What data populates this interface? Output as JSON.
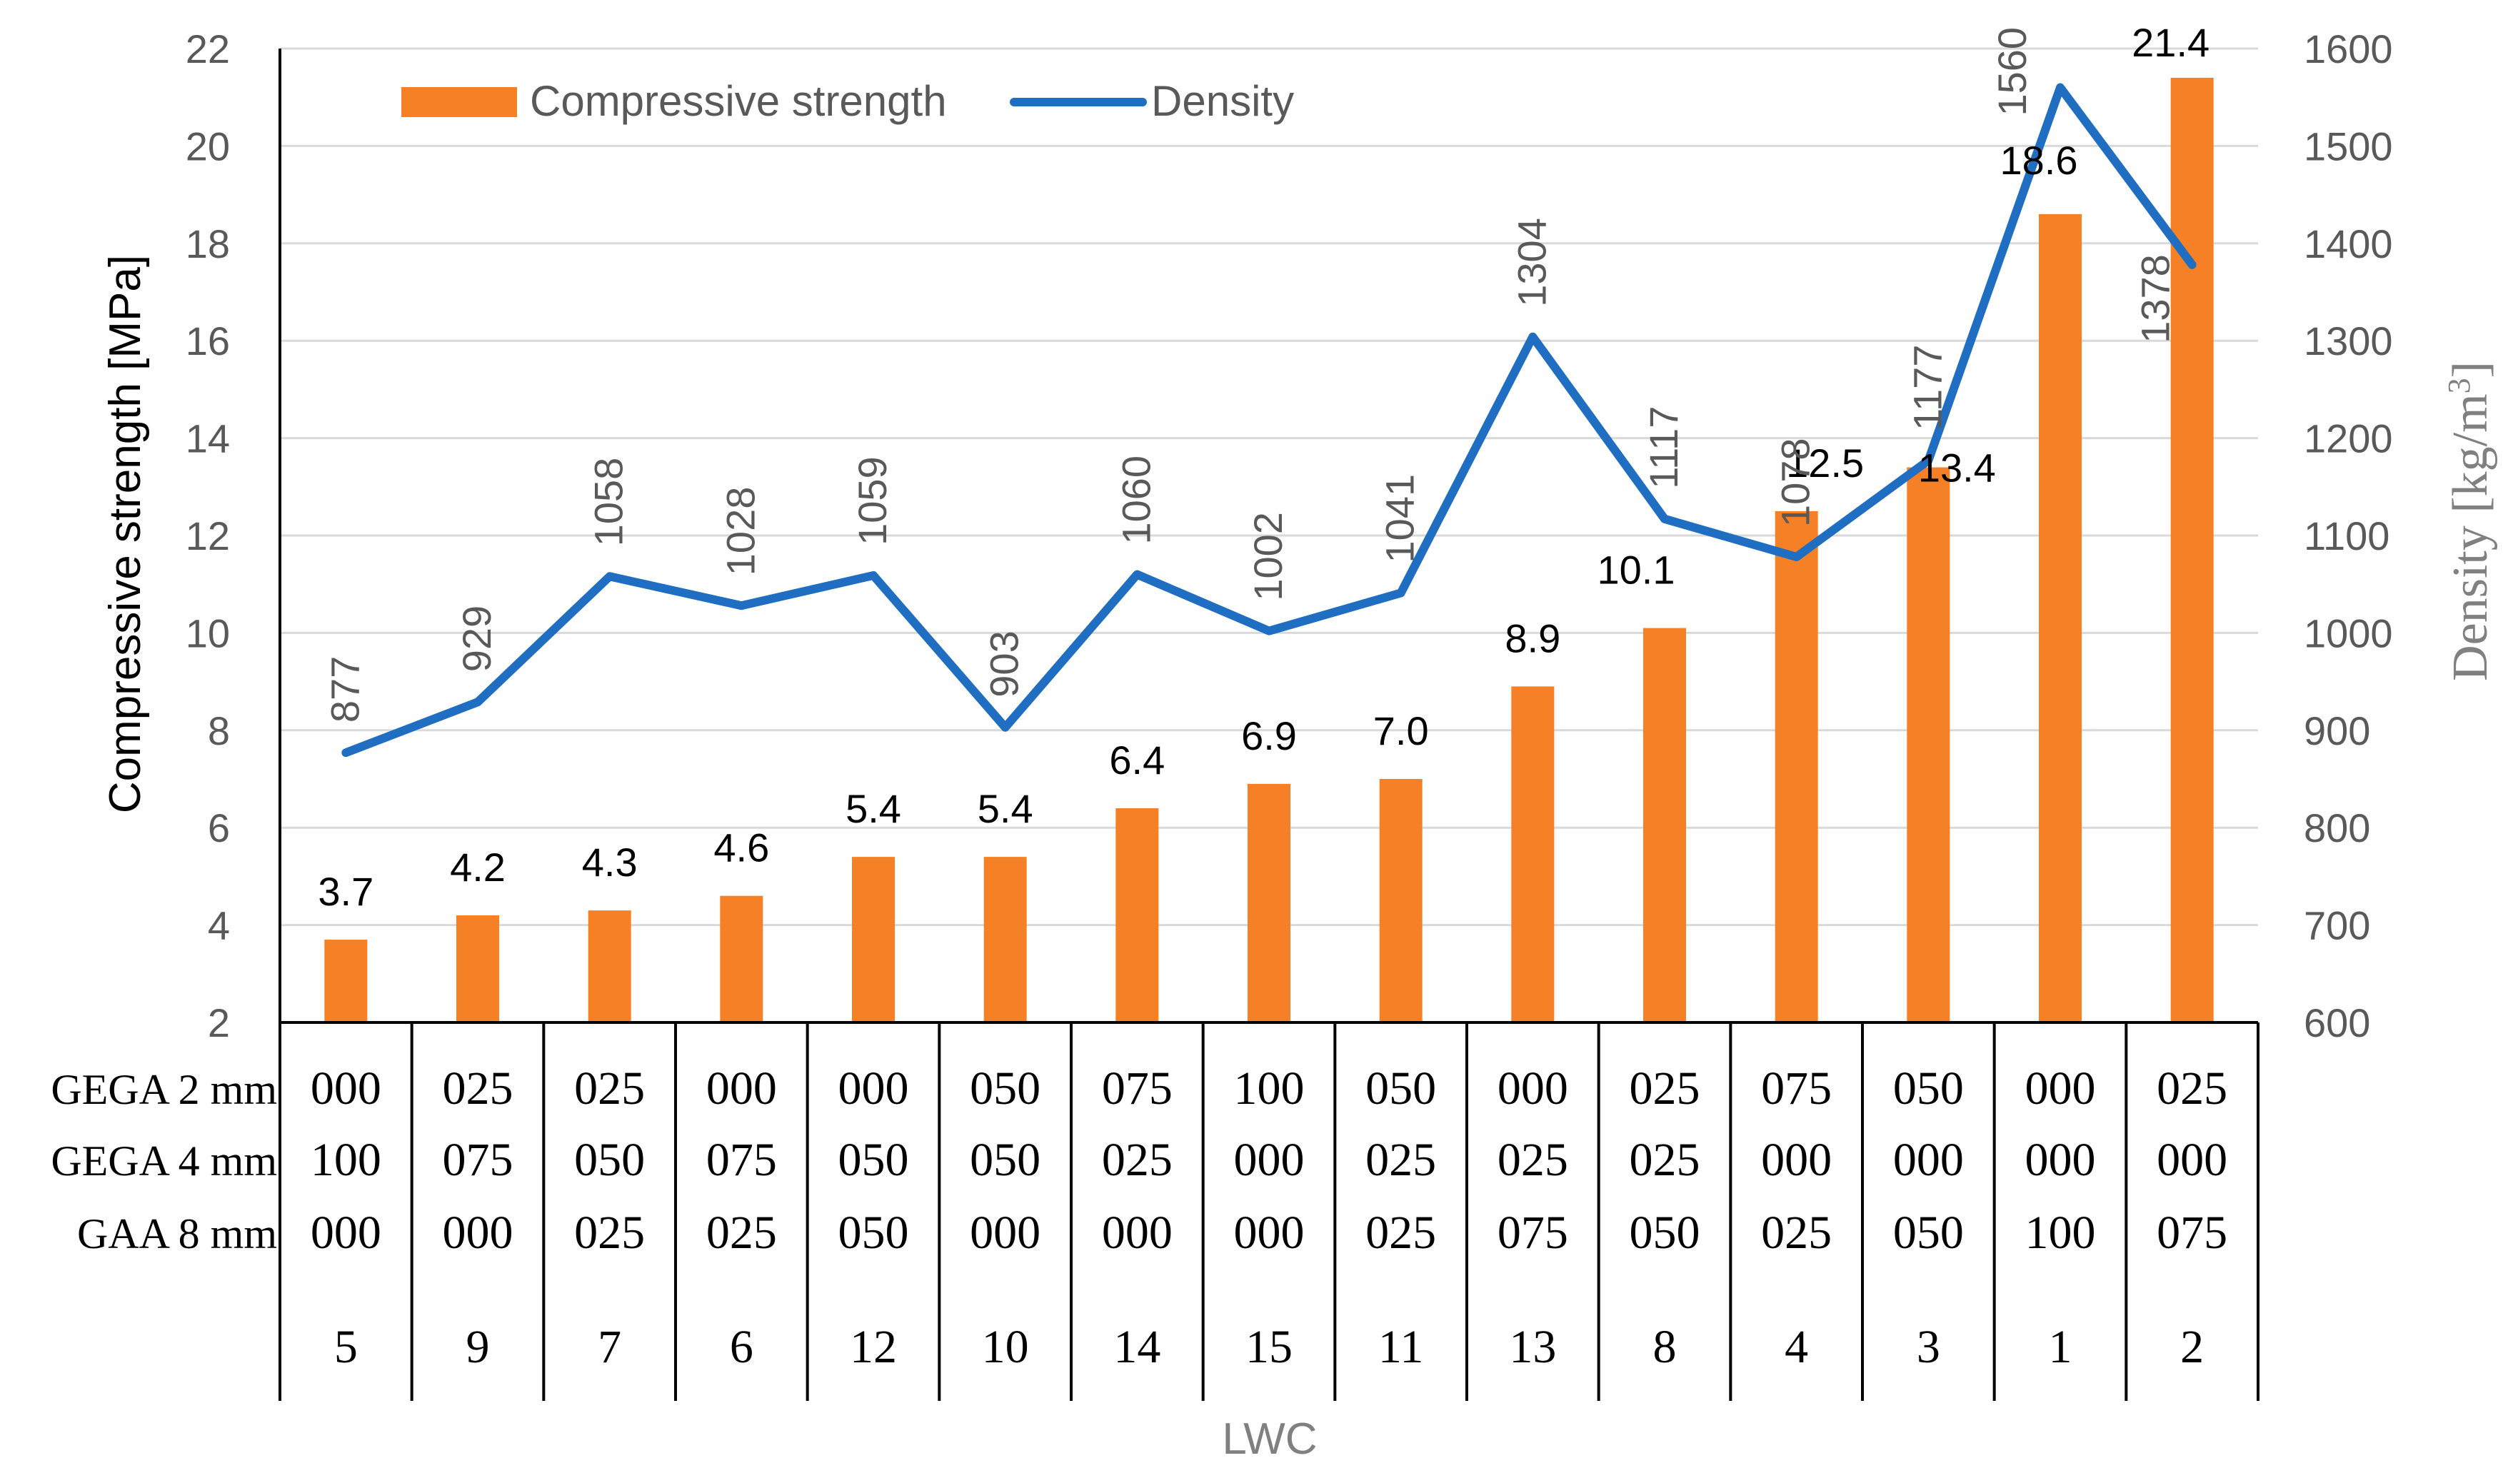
{
  "chart_data": {
    "type": "bar+line",
    "categories": [
      "5",
      "9",
      "7",
      "6",
      "12",
      "10",
      "14",
      "15",
      "11",
      "13",
      "8",
      "4",
      "3",
      "1",
      "2"
    ],
    "series": [
      {
        "name": "Compressive strength",
        "type": "bar",
        "axis": "left",
        "color": "#F58025",
        "values": [
          3.7,
          4.2,
          4.3,
          4.6,
          5.4,
          5.4,
          6.4,
          6.9,
          7.0,
          8.9,
          10.1,
          12.5,
          13.4,
          18.6,
          21.4
        ],
        "labels": [
          "3.7",
          "4.2",
          "4.3",
          "4.6",
          "5.4",
          "5.4",
          "6.4",
          "6.9",
          "7.0",
          "8.9",
          "10.1",
          "12.5",
          "13.4",
          "18.6",
          "21.4"
        ]
      },
      {
        "name": "Density",
        "type": "line",
        "axis": "right",
        "color": "#1F6EC2",
        "values": [
          877,
          929,
          1058,
          1028,
          1059,
          903,
          1060,
          1002,
          1041,
          1304,
          1117,
          1078,
          1177,
          1560,
          1378
        ],
        "labels": [
          "877",
          "929",
          "1058",
          "1028",
          "1059",
          "903",
          "1060",
          "1002",
          "1041",
          "1304",
          "1117",
          "1078",
          "1177",
          "1560",
          "1378"
        ]
      }
    ],
    "ylabel": "Compressive strength [MPa]",
    "y2label_main": "Density [kg/m",
    "y2label_sup": "3",
    "y2label_close": "]",
    "xlabel": "LWC",
    "ylim": [
      2,
      22
    ],
    "y2lim": [
      600,
      1600
    ],
    "yticks": [
      "2",
      "4",
      "6",
      "8",
      "10",
      "12",
      "14",
      "16",
      "18",
      "20",
      "22"
    ],
    "y2ticks": [
      "600",
      "700",
      "800",
      "900",
      "1000",
      "1100",
      "1200",
      "1300",
      "1400",
      "1500",
      "1600"
    ],
    "grid": true,
    "legend": "top-left",
    "table": {
      "row_labels": [
        "GEGA 2 mm",
        "GEGA 4 mm",
        "GAA 8 mm"
      ],
      "rows": [
        [
          "000",
          "025",
          "025",
          "000",
          "000",
          "050",
          "075",
          "100",
          "050",
          "000",
          "025",
          "075",
          "050",
          "000",
          "025"
        ],
        [
          "100",
          "075",
          "050",
          "075",
          "050",
          "050",
          "025",
          "000",
          "025",
          "025",
          "025",
          "000",
          "000",
          "000",
          "000"
        ],
        [
          "000",
          "000",
          "025",
          "025",
          "050",
          "000",
          "000",
          "000",
          "025",
          "075",
          "050",
          "025",
          "050",
          "100",
          "075"
        ]
      ]
    }
  }
}
